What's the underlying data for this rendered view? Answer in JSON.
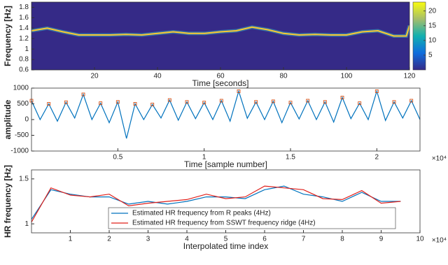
{
  "chart_data": [
    {
      "type": "spectrogram",
      "xlabel": "Time [seconds]",
      "ylabel": "Frequency [Hz]",
      "xlim": [
        0,
        120
      ],
      "xticks": [
        20,
        40,
        60,
        80,
        100,
        120
      ],
      "ylim": [
        0.6,
        1.9
      ],
      "yticks": [
        0.6,
        0.8,
        1,
        1.2,
        1.4,
        1.6,
        1.8
      ],
      "background": "#352a87",
      "ridge_color": "#f9c932",
      "ridge": {
        "x": [
          0,
          5,
          10,
          15,
          20,
          25,
          30,
          35,
          40,
          45,
          50,
          55,
          60,
          65,
          70,
          75,
          80,
          85,
          90,
          95,
          100,
          105,
          110,
          115,
          119,
          120
        ],
        "values": [
          1.35,
          1.4,
          1.33,
          1.27,
          1.27,
          1.27,
          1.28,
          1.27,
          1.3,
          1.33,
          1.3,
          1.3,
          1.33,
          1.35,
          1.42,
          1.37,
          1.3,
          1.27,
          1.28,
          1.27,
          1.27,
          1.33,
          1.35,
          1.25,
          1.25,
          1.45
        ]
      },
      "clim": [
        0,
        23
      ],
      "cticks": [
        5,
        10,
        15,
        20
      ]
    },
    {
      "type": "line",
      "xlabel": "Time [sample number]",
      "ylabel": "amplitude",
      "x_multiplier": "×10⁴",
      "xlim": [
        0,
        22500
      ],
      "xticks": [
        {
          "value": 5000,
          "label": "0.5"
        },
        {
          "value": 10000,
          "label": "1"
        },
        {
          "value": 15000,
          "label": "1.5"
        },
        {
          "value": 20000,
          "label": "2"
        }
      ],
      "ylim": [
        -1000,
        1000
      ],
      "yticks": [
        -1000,
        -500,
        0,
        500,
        1000
      ],
      "series": [
        {
          "color": "#0072bd",
          "marker": "none",
          "x": [
            0,
            500,
            1000,
            1500,
            2000,
            2500,
            3000,
            3500,
            4000,
            4500,
            5000,
            5500,
            6000,
            6500,
            7000,
            7500,
            8000,
            8500,
            9000,
            9500,
            10000,
            10500,
            11000,
            11500,
            12000,
            12500,
            13000,
            13500,
            14000,
            14500,
            15000,
            15500,
            16000,
            16500,
            17000,
            17500,
            18000,
            18500,
            19000,
            19500,
            20000,
            20500,
            21000,
            21500,
            22000,
            22500
          ],
          "values": [
            600,
            0,
            500,
            -50,
            550,
            50,
            800,
            0,
            520,
            -100,
            560,
            -600,
            500,
            0,
            480,
            50,
            620,
            -20,
            560,
            30,
            540,
            0,
            600,
            -50,
            900,
            40,
            560,
            0,
            580,
            -100,
            540,
            20,
            600,
            0,
            560,
            -80,
            700,
            30,
            520,
            0,
            900,
            -30,
            560,
            50,
            600,
            0
          ]
        },
        {
          "color": "#d95319",
          "marker": "square",
          "x": [
            0,
            1000,
            2000,
            3000,
            4000,
            5000,
            6000,
            7000,
            8000,
            9000,
            10000,
            11000,
            12000,
            13000,
            14000,
            15000,
            16000,
            17000,
            18000,
            19000,
            20000,
            21000,
            22000
          ],
          "values": [
            600,
            500,
            550,
            800,
            520,
            560,
            500,
            480,
            620,
            560,
            540,
            600,
            900,
            560,
            580,
            540,
            600,
            560,
            700,
            520,
            900,
            560,
            600
          ]
        }
      ]
    },
    {
      "type": "line",
      "xlabel": "Interpolated time index",
      "ylabel": "HR frequency [Hz]",
      "x_multiplier": "×10⁴",
      "xlim": [
        0,
        100000
      ],
      "xticks": [
        {
          "value": 10000,
          "label": "1"
        },
        {
          "value": 20000,
          "label": "2"
        },
        {
          "value": 30000,
          "label": "3"
        },
        {
          "value": 40000,
          "label": "4"
        },
        {
          "value": 50000,
          "label": "5"
        },
        {
          "value": 60000,
          "label": "6"
        },
        {
          "value": 70000,
          "label": "7"
        },
        {
          "value": 80000,
          "label": "8"
        },
        {
          "value": 90000,
          "label": "9"
        },
        {
          "value": 100000,
          "label": "10"
        }
      ],
      "ylim": [
        0.9,
        1.6
      ],
      "yticks": [
        1,
        1.5
      ],
      "series": [
        {
          "name": "Estimated HR frequency from R peaks (4Hz)",
          "color": "#0072bd",
          "marker": "none",
          "x": [
            0,
            5000,
            10000,
            15000,
            20000,
            25000,
            30000,
            35000,
            40000,
            45000,
            50000,
            55000,
            60000,
            65000,
            70000,
            75000,
            80000,
            85000,
            90000,
            95000
          ],
          "values": [
            1.05,
            1.38,
            1.33,
            1.3,
            1.3,
            1.22,
            1.25,
            1.22,
            1.25,
            1.3,
            1.3,
            1.28,
            1.38,
            1.42,
            1.33,
            1.3,
            1.25,
            1.35,
            1.25,
            1.25
          ]
        },
        {
          "name": "Estimated HR frequency from SSWT frequency ridge (4Hz)",
          "color": "#e0201b",
          "marker": "none",
          "x": [
            0,
            5000,
            10000,
            15000,
            20000,
            25000,
            30000,
            35000,
            40000,
            45000,
            50000,
            55000,
            60000,
            65000,
            70000,
            75000,
            80000,
            85000,
            90000,
            95000
          ],
          "values": [
            1.02,
            1.4,
            1.32,
            1.3,
            1.33,
            1.2,
            1.23,
            1.25,
            1.27,
            1.33,
            1.28,
            1.3,
            1.42,
            1.4,
            1.38,
            1.28,
            1.27,
            1.37,
            1.23,
            1.25
          ]
        }
      ]
    }
  ]
}
